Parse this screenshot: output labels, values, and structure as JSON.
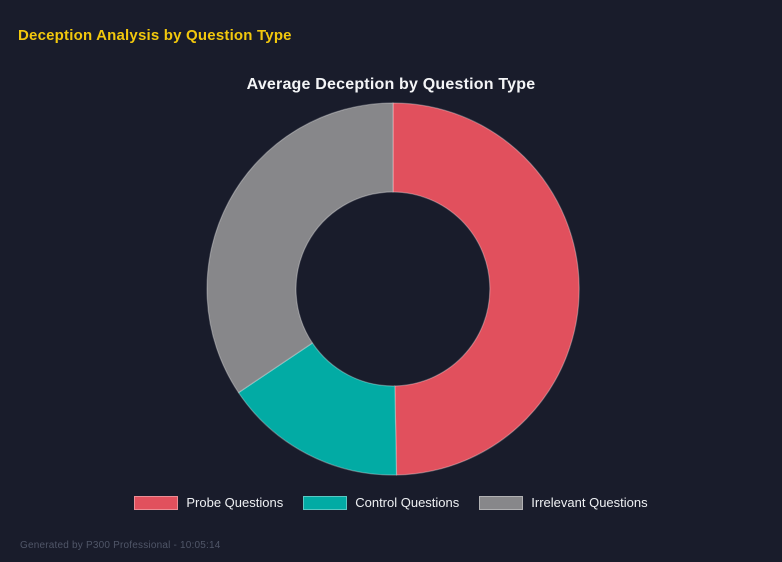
{
  "page": {
    "background": "#191c2b"
  },
  "header": {
    "title": "Deception Analysis by Question Type",
    "color": "#f2c80d"
  },
  "chart": {
    "title": "Average Deception by Question Type",
    "title_color": "#f4f5f7",
    "legend_text_color": "#eef0f3",
    "legend": [
      {
        "label": "Probe Questions",
        "color": "#e1505d"
      },
      {
        "label": "Control Questions",
        "color": "#02aba4"
      },
      {
        "label": "Irrelevant Questions",
        "color": "#87878a"
      }
    ]
  },
  "chart_data": {
    "type": "pie",
    "subtype": "doughnut",
    "title": "Average Deception by Question Type",
    "categories": [
      "Probe Questions",
      "Control Questions",
      "Irrelevant Questions"
    ],
    "values_percent": [
      49.7,
      15.9,
      34.4
    ],
    "colors": [
      "#e1505d",
      "#02aba4",
      "#87878a"
    ],
    "start_angle": "top",
    "direction": "clockwise",
    "inner_radius_ratio": 0.52,
    "legend_position": "bottom",
    "grid": false
  },
  "footer": {
    "text": "Generated by P300 Professional - 10:05:14",
    "color": "#505668"
  }
}
